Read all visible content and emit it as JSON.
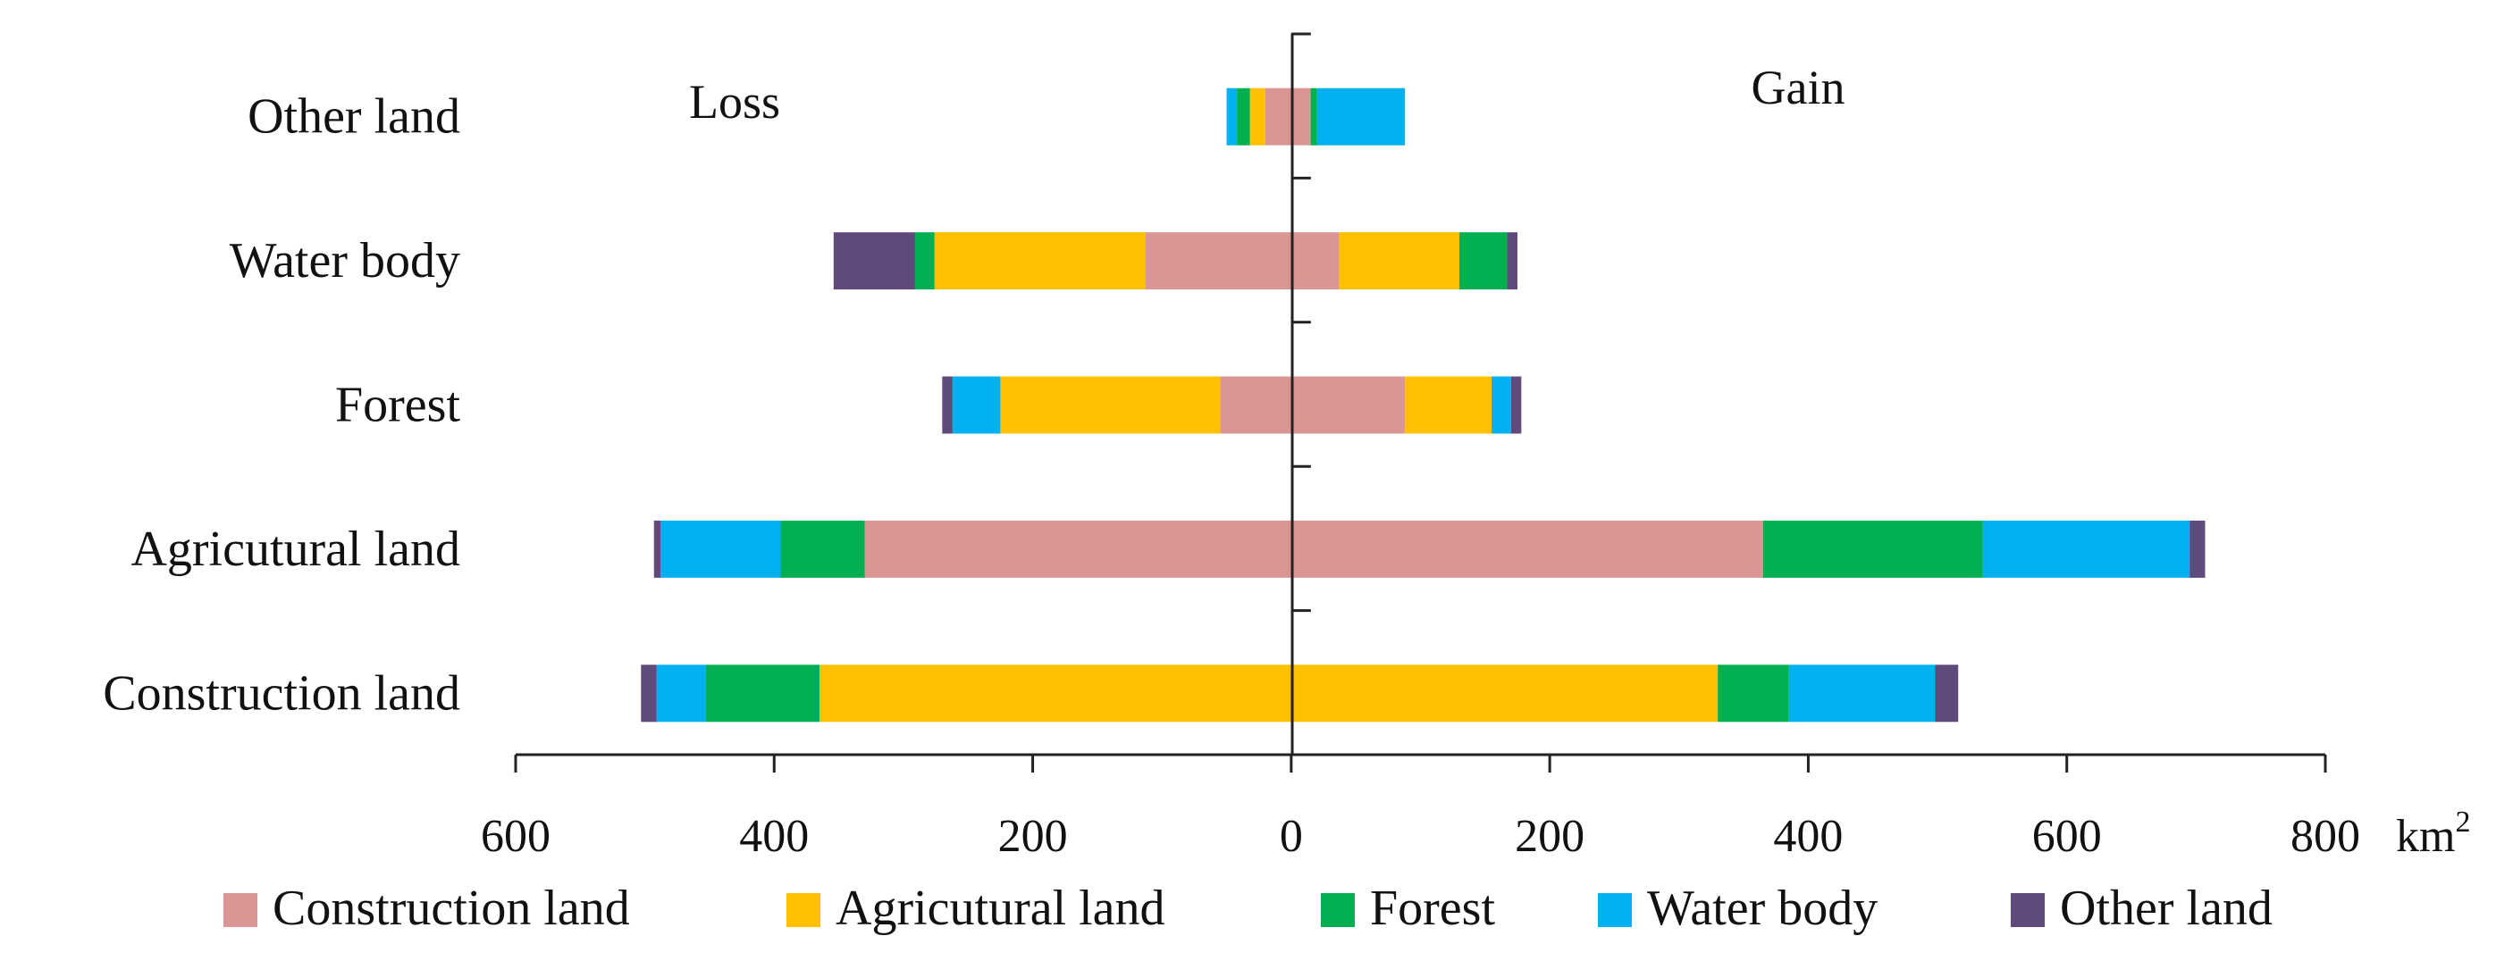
{
  "chart_data": {
    "type": "bar",
    "orientation": "horizontal",
    "stacked": true,
    "diverging": true,
    "title": "",
    "xlabel": "",
    "unit": "km",
    "unit_superscript": "2",
    "xlim": [
      -600,
      800
    ],
    "xticks": [
      -600,
      -400,
      -200,
      0,
      200,
      400,
      600,
      800
    ],
    "xtick_labels": [
      "600",
      "400",
      "200",
      "0",
      "200",
      "400",
      "600",
      "800"
    ],
    "annotations": {
      "loss": "Loss",
      "gain": "Gain"
    },
    "categories": [
      "Construction land",
      "Agricutural land",
      "Forest",
      "Water body",
      "Other land"
    ],
    "series": [
      {
        "name": "Construction land",
        "color": "#D99694",
        "loss": [
          0,
          -330,
          -55,
          -113,
          -20
        ],
        "gain": [
          0,
          365,
          88,
          37,
          15
        ]
      },
      {
        "name": "Agricutural land",
        "color": "#FFC000",
        "loss": [
          -365,
          0,
          -170,
          -163,
          -12
        ],
        "gain": [
          330,
          0,
          67,
          93,
          0
        ]
      },
      {
        "name": "Forest",
        "color": "#00B050",
        "loss": [
          -88,
          -65,
          0,
          -15,
          -10
        ],
        "gain": [
          55,
          170,
          0,
          37,
          5
        ]
      },
      {
        "name": "Water body",
        "color": "#00B0F0",
        "loss": [
          -38,
          -93,
          -37,
          0,
          -8
        ],
        "gain": [
          113,
          160,
          15,
          0,
          68
        ]
      },
      {
        "name": "Other land",
        "color": "#604A7B",
        "loss": [
          -12,
          -5,
          -8,
          -63,
          0
        ],
        "gain": [
          18,
          12,
          8,
          8,
          0
        ]
      }
    ],
    "legend": {
      "position": "bottom",
      "items": [
        "Construction land",
        "Agricutural land",
        "Forest",
        "Water body",
        "Other land"
      ]
    }
  }
}
